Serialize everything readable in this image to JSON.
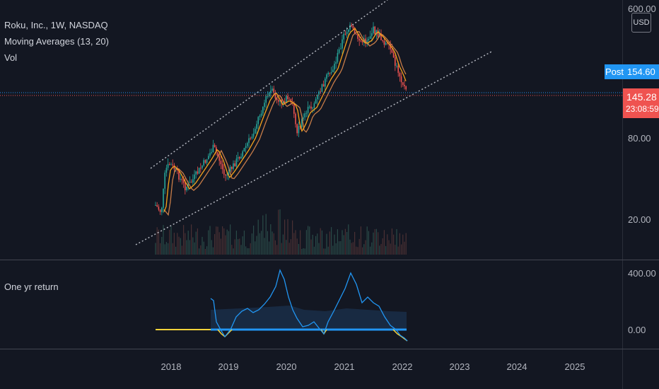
{
  "legend": {
    "symbol": "Roku, Inc., 1W, NASDAQ",
    "ma": "Moving Averages (13, 20)",
    "vol": "Vol",
    "oscillator": "One yr return"
  },
  "price_axis": {
    "currency_button": "USD",
    "labels": [
      "600.00",
      "80.00",
      "20.00"
    ],
    "osc_labels": [
      "400.00",
      "0.00"
    ]
  },
  "badges": {
    "post_label": "Post",
    "post_price": "154.60",
    "last_price": "145.28",
    "countdown": "23:08:59"
  },
  "time_axis": [
    "2018",
    "2019",
    "2020",
    "2021",
    "2022",
    "2023",
    "2024",
    "2025"
  ],
  "colors": {
    "background": "#131722",
    "post": "#2196f3",
    "last": "#ef5350",
    "up": "#26a69a",
    "down": "#ef5350",
    "ma13": "#f7a21b",
    "ma20": "#c77c48",
    "return_line": "#2196f3",
    "zero_line": "#f5d33b"
  }
}
